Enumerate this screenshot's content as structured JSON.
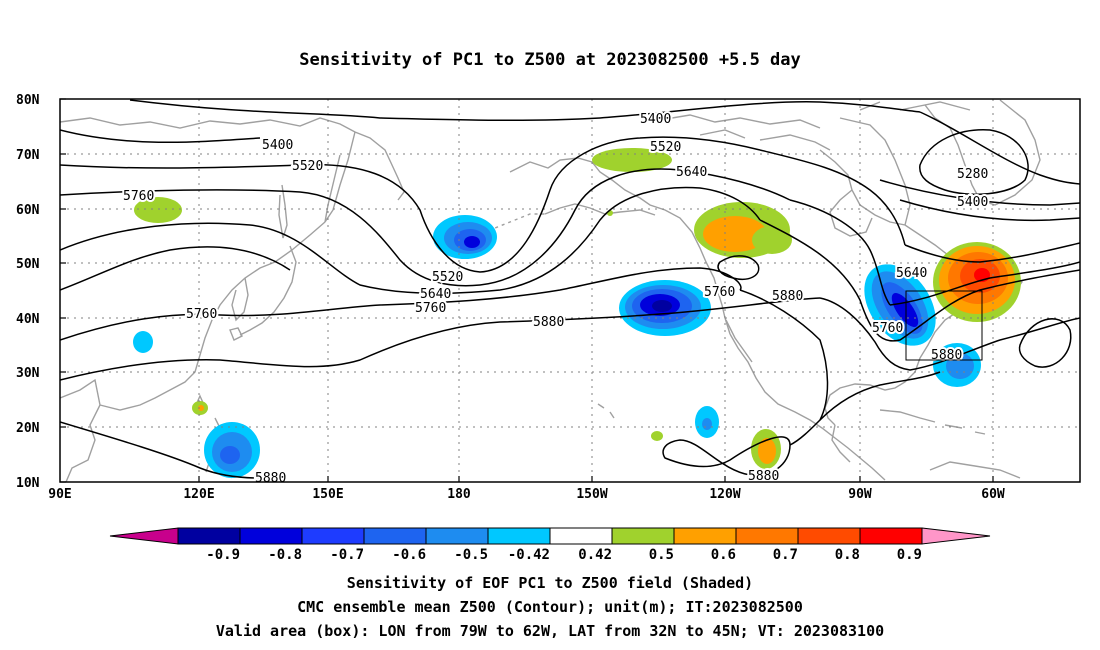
{
  "title": "Sensitivity of PC1 to Z500 at 2023082500 +5.5 day",
  "map": {
    "lat_labels": [
      "80N",
      "70N",
      "60N",
      "50N",
      "40N",
      "30N",
      "20N",
      "10N"
    ],
    "lon_labels": [
      "90E",
      "120E",
      "150E",
      "180",
      "150W",
      "120W",
      "90W",
      "60W"
    ],
    "contour_labels": [
      "5400",
      "5520",
      "5760",
      "5760",
      "5880",
      "5520",
      "5640",
      "5760",
      "5400",
      "5520",
      "5640",
      "5760",
      "5880",
      "5880",
      "5880",
      "5640",
      "5760",
      "5880",
      "5400",
      "5280"
    ]
  },
  "colorbar": {
    "ticks": [
      "-0.9",
      "-0.8",
      "-0.7",
      "-0.6",
      "-0.5",
      "-0.42",
      "0.42",
      "0.5",
      "0.6",
      "0.7",
      "0.8",
      "0.9"
    ],
    "colors": [
      "#c8008c",
      "#0000a0",
      "#0000dc",
      "#1e3cff",
      "#1e64f0",
      "#1e8cf0",
      "#00c8ff",
      "#ffffff",
      "#a0d22d",
      "#ffa000",
      "#ff7800",
      "#ff4b00",
      "#ff0000",
      "#ff96c8"
    ]
  },
  "captions": [
    "Sensitivity of EOF PC1 to Z500 field (Shaded)",
    "CMC ensemble mean Z500 (Contour); unit(m); IT:2023082500",
    "Valid area (box): LON from 79W to 62W, LAT from 32N to 45N; VT: 2023083100"
  ]
}
